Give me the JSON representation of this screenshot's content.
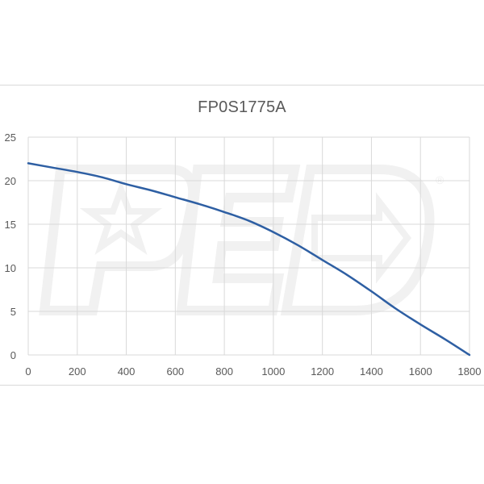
{
  "chart_data": {
    "type": "line",
    "title": "FP0S1775A",
    "xlabel": "",
    "ylabel": "",
    "xlim": [
      0,
      1800
    ],
    "ylim": [
      0,
      25
    ],
    "x_ticks": [
      0,
      200,
      400,
      600,
      800,
      1000,
      1200,
      1400,
      1600,
      1800
    ],
    "y_ticks": [
      0,
      5,
      10,
      15,
      20,
      25
    ],
    "grid": true,
    "legend": "none",
    "series": [
      {
        "color": "#2e5fa3",
        "x": [
          0,
          100,
          200,
          300,
          400,
          500,
          600,
          700,
          800,
          900,
          1000,
          1100,
          1200,
          1300,
          1400,
          1500,
          1600,
          1700,
          1800
        ],
        "y": [
          22.0,
          21.5,
          21.0,
          20.4,
          19.6,
          18.9,
          18.1,
          17.3,
          16.4,
          15.4,
          14.1,
          12.6,
          10.9,
          9.2,
          7.3,
          5.3,
          3.5,
          1.8,
          0.0
        ]
      }
    ]
  },
  "watermark": {
    "icon": "ped-logo-watermark-icon",
    "registered_mark": "®"
  }
}
